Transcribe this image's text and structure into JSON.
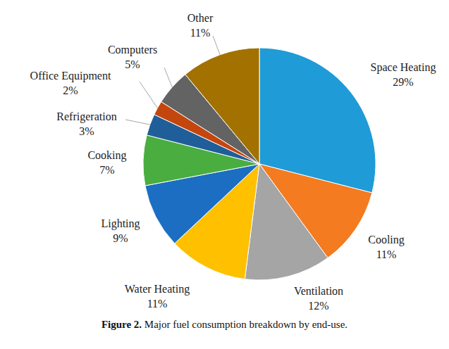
{
  "chart_data": {
    "type": "pie",
    "title": "Figure 2. Major fuel consumption breakdown by end-use.",
    "categories": [
      "Space Heating",
      "Cooling",
      "Ventilation",
      "Water Heating",
      "Lighting",
      "Cooking",
      "Refrigeration",
      "Office Equipment",
      "Computers",
      "Other"
    ],
    "values": [
      29,
      11,
      12,
      11,
      9,
      7,
      3,
      2,
      5,
      11
    ],
    "value_labels": [
      "29%",
      "11%",
      "12%",
      "11%",
      "9%",
      "7%",
      "3%",
      "2%",
      "5%",
      "11%"
    ],
    "colors": [
      "#1f9bd7",
      "#f47b20",
      "#a5a5a5",
      "#ffc000",
      "#1b6ec2",
      "#4aad3f",
      "#1f5e99",
      "#c4460f",
      "#636363",
      "#a27100"
    ],
    "data_labels": true
  }
}
